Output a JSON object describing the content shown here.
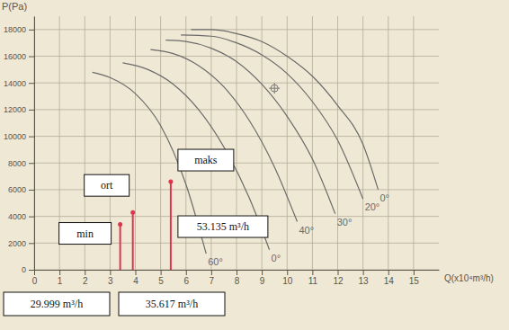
{
  "chart_data": {
    "type": "line",
    "y_label": "P(Pa)",
    "x_label": "Q(x10⁴m³/h)",
    "xlim": [
      0,
      16
    ],
    "ylim": [
      0,
      19000
    ],
    "xticks": [
      0,
      1,
      2,
      3,
      4,
      5,
      6,
      7,
      8,
      9,
      10,
      11,
      12,
      13,
      14,
      15
    ],
    "yticks": [
      0,
      2000,
      4000,
      6000,
      8000,
      10000,
      12000,
      14000,
      16000,
      18000
    ],
    "grid": true,
    "color": "#6b6b6b",
    "series": [
      {
        "label": "60°",
        "x": [
          2.3,
          3,
          4,
          5,
          6,
          6.8
        ],
        "values": [
          14800,
          14400,
          13200,
          10800,
          6400,
          1200
        ]
      },
      {
        "label": "0°",
        "x": [
          3.5,
          4.5,
          5.5,
          6.5,
          7.5,
          8.5,
          9.3
        ],
        "values": [
          15500,
          15000,
          13900,
          12000,
          9200,
          5400,
          1500
        ]
      },
      {
        "label": "40°",
        "x": [
          4.6,
          5.5,
          6.5,
          7.5,
          8.5,
          9.5,
          10.4
        ],
        "values": [
          16500,
          16200,
          15300,
          13700,
          11200,
          7700,
          3600
        ]
      },
      {
        "label": "30°",
        "x": [
          5.2,
          6,
          7,
          8,
          9,
          10,
          11,
          11.9
        ],
        "values": [
          17200,
          17100,
          16600,
          15600,
          13900,
          11500,
          8300,
          4200
        ]
      },
      {
        "label": "20°",
        "x": [
          5.8,
          7,
          8,
          9,
          10,
          11,
          12,
          13
        ],
        "values": [
          17600,
          17500,
          17000,
          16100,
          14700,
          12600,
          9700,
          5300
        ]
      },
      {
        "label": "0°",
        "x": [
          6.2,
          7,
          8,
          9,
          10,
          11,
          12,
          13,
          13.6
        ],
        "values": [
          18000,
          18000,
          17700,
          17100,
          16000,
          14500,
          12300,
          9400,
          6000
        ]
      }
    ],
    "operating_point": {
      "x": 9.5,
      "y": 13600,
      "marker": "crosshair"
    },
    "stems": [
      {
        "label": "min",
        "x": 3.4,
        "value": 3400,
        "flow": "29.999 m³/h",
        "color": "#e0344c"
      },
      {
        "label": "ort",
        "x": 3.9,
        "value": 4300,
        "flow": "35.617 m³/h",
        "color": "#e0344c"
      },
      {
        "label": "maks",
        "x": 5.4,
        "value": 6600,
        "flow": "53.135 m³/h",
        "color": "#e0344c"
      }
    ]
  }
}
